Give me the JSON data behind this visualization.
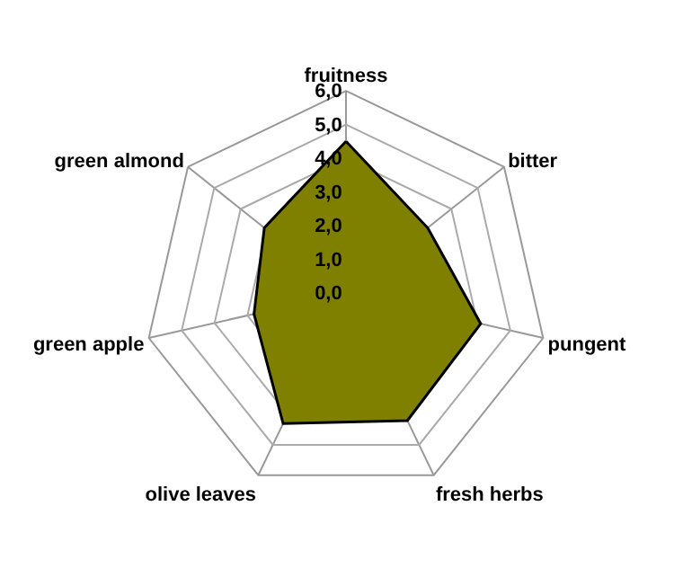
{
  "chart_data": {
    "type": "radar",
    "categories": [
      "fruitness",
      "bitter",
      "pungent",
      "fresh herbs",
      "olive leaves",
      "green apple",
      "green almond"
    ],
    "series": [
      {
        "color": "#808000",
        "values": [
          4.5,
          3.1,
          4.1,
          4.2,
          4.3,
          2.8,
          3.1
        ]
      }
    ],
    "ylim": [
      0,
      6
    ],
    "yticks": [
      {
        "value": 0,
        "label": "0,0"
      },
      {
        "value": 1,
        "label": "1,0"
      },
      {
        "value": 2,
        "label": "2,0"
      },
      {
        "value": 3,
        "label": "3,0"
      },
      {
        "value": 4,
        "label": "4,0"
      },
      {
        "value": 5,
        "label": "5,0"
      },
      {
        "value": 6,
        "label": "6,0"
      }
    ],
    "grid": true,
    "legend": false
  }
}
